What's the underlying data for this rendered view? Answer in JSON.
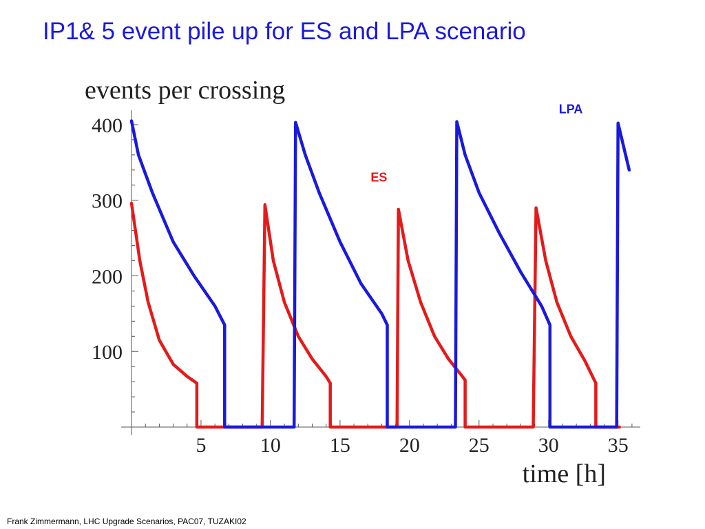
{
  "slide": {
    "title": "IP1& 5 event pile up for ES and LPA scenario",
    "footer": "Frank Zimmermann, LHC Upgrade Scenarios, PAC07, TUZAKI02"
  },
  "colors": {
    "title": "#1a1adc",
    "es": "#e31b1b",
    "lpa": "#1a1adc",
    "axis": "#555555"
  },
  "chart_data": {
    "type": "line",
    "title": "events per crossing",
    "xlabel": "time [h]",
    "ylabel": "",
    "xlim": [
      0,
      36.5
    ],
    "ylim": [
      0,
      420
    ],
    "xticks": [
      5,
      10,
      15,
      20,
      25,
      30,
      35
    ],
    "yticks": [
      100,
      200,
      300,
      400
    ],
    "grid": false,
    "series": [
      {
        "name": "ES",
        "color": "#e31b1b",
        "x": [
          0,
          0.6,
          1.2,
          2.0,
          3.0,
          4.0,
          4.7,
          4.7,
          6.2,
          9.4,
          9.6,
          10.2,
          11.0,
          12.0,
          13.0,
          14.0,
          14.3,
          14.3,
          19.1,
          19.2,
          19.9,
          20.8,
          21.8,
          22.8,
          23.8,
          24.0,
          24.0,
          28.9,
          29.1,
          29.8,
          30.6,
          31.6,
          32.6,
          33.4,
          33.4,
          35.1
        ],
        "y": [
          296,
          220,
          165,
          115,
          83,
          67,
          58,
          0,
          0,
          0,
          294,
          220,
          165,
          120,
          90,
          67,
          58,
          0,
          0,
          288,
          220,
          165,
          120,
          90,
          67,
          62,
          0,
          0,
          290,
          220,
          165,
          120,
          88,
          58,
          0,
          0
        ]
      },
      {
        "name": "LPA",
        "color": "#1a1adc",
        "x": [
          0,
          0.5,
          1.5,
          3.0,
          4.5,
          6.0,
          6.7,
          6.7,
          7.7,
          10.0,
          11.7,
          11.8,
          12.5,
          13.5,
          15.0,
          16.5,
          18.0,
          18.4,
          18.4,
          20.0,
          23.3,
          23.4,
          24.0,
          25.0,
          26.5,
          28.0,
          29.5,
          30.1,
          30.1,
          34.9,
          35.0,
          35.8
        ],
        "y": [
          405,
          360,
          310,
          245,
          200,
          160,
          135,
          0,
          0,
          0,
          0,
          403,
          360,
          310,
          245,
          190,
          150,
          135,
          0,
          0,
          0,
          404,
          360,
          310,
          255,
          205,
          160,
          135,
          0,
          0,
          402,
          340
        ]
      }
    ],
    "annotations": [
      {
        "text": "LPA",
        "series": "LPA",
        "x": 31.6,
        "y": 415
      },
      {
        "text": "ES",
        "series": "ES",
        "x": 17.8,
        "y": 325
      }
    ]
  }
}
